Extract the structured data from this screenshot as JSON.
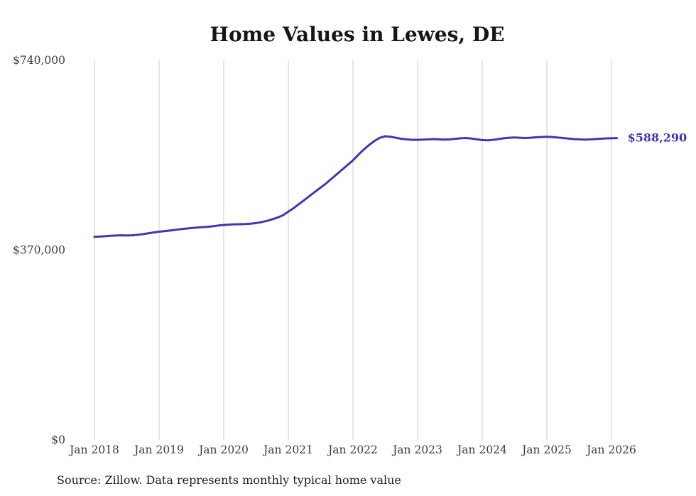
{
  "page": {
    "background": "#ffffff"
  },
  "source_note": "Source: Zillow. Data represents monthly typical home value",
  "chart_data": {
    "type": "line",
    "title": "Home Values in Lewes, DE",
    "xlabel": "",
    "ylabel": "",
    "ylim": [
      0,
      740000
    ],
    "grid": "vertical-only",
    "legend_position": "none",
    "line_color": "#3e36b5",
    "grid_color": "#cccccc",
    "axis_label_color": "#3c3c3c",
    "title_color": "#161616",
    "months_per_tick": 12,
    "x_tick_labels": [
      "Jan 2018",
      "Jan 2019",
      "Jan 2020",
      "Jan 2021",
      "Jan 2022",
      "Jan 2023",
      "Jan 2024",
      "Jan 2025",
      "Jan 2026"
    ],
    "y_ticks": [
      {
        "label": "$0",
        "value": 0
      },
      {
        "label": "$370,000",
        "value": 370000
      },
      {
        "label": "$740,000",
        "value": 740000
      }
    ],
    "end_label": "$588,290",
    "series": [
      {
        "name": "Monthly typical home value",
        "x_start": "Jan 2018",
        "x_end": "Feb 2026",
        "values": [
          396000,
          396400,
          397200,
          398000,
          398600,
          398800,
          398500,
          398800,
          399800,
          401200,
          402800,
          404500,
          406000,
          407000,
          408200,
          409500,
          410800,
          412000,
          413000,
          414000,
          414800,
          415500,
          416500,
          418000,
          419000,
          419800,
          420300,
          420500,
          420800,
          421500,
          422800,
          424500,
          427000,
          430000,
          433500,
          438000,
          445000,
          452000,
          460000,
          468000,
          476000,
          484000,
          492000,
          500000,
          509000,
          518000,
          527000,
          536000,
          545000,
          556000,
          566000,
          575000,
          583000,
          589000,
          592000,
          591000,
          589000,
          587000,
          586000,
          585000,
          585000,
          585500,
          586000,
          586500,
          586000,
          585500,
          586000,
          587000,
          588000,
          588500,
          587500,
          586000,
          584500,
          584000,
          585000,
          586500,
          588000,
          589000,
          589500,
          589000,
          588500,
          589000,
          590000,
          590500,
          591000,
          590500,
          589500,
          588500,
          587500,
          586500,
          586000,
          585500,
          585800,
          586500,
          587200,
          587800,
          588100,
          588290
        ]
      }
    ]
  }
}
